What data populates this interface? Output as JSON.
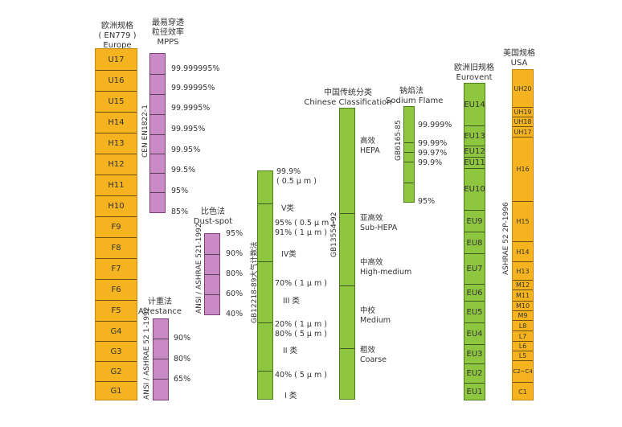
{
  "europe": {
    "header": [
      "欧洲规格",
      "( EN779 )",
      "Europe"
    ],
    "classes": [
      "U17",
      "U16",
      "U15",
      "H14",
      "H13",
      "H12",
      "H11",
      "H10",
      "F9",
      "F8",
      "F7",
      "F6",
      "F5",
      "G4",
      "G3",
      "G2",
      "G1"
    ]
  },
  "mpps": {
    "header": [
      "最易穿透",
      "粒径效率",
      "MPPS"
    ],
    "standard": "CEN EN1822-1",
    "values": [
      "99.999995%",
      "99.99995%",
      "99.9995%",
      "99.995%",
      "99.95%",
      "99.5%",
      "95%",
      "85%"
    ]
  },
  "dustspot": {
    "header": [
      "比色法",
      "Dust-spot"
    ],
    "standard": "ANSI / ASHRAE 521-1992",
    "values": [
      "95%",
      "90%",
      "80%",
      "60%",
      "40%"
    ]
  },
  "arrestance": {
    "header": [
      "计重法",
      "Arrestance"
    ],
    "standard": "ANSI / ASHRAE 52 1-1992",
    "values": [
      "90%",
      "80%",
      "65%"
    ]
  },
  "gb12218": {
    "standard": "GB12218-89大气计数法",
    "labels": [
      "99.9%",
      "( 0.5 μ m )",
      "V类",
      "95% ( 0.5 μ m )",
      "91% ( 1 μ m )",
      "IV类",
      "70% ( 1 μ m )",
      "III 类",
      "20% ( 1 μ m )",
      "80% ( 5 μ m )",
      "II 类",
      "40% ( 5 μ m )",
      "I 类"
    ]
  },
  "chinese": {
    "header": [
      "中国传统分类",
      "Chinese Classification"
    ],
    "standard": "GB13554-92",
    "labels": [
      "高效",
      "HEPA",
      "亚高效",
      "Sub-HEPA",
      "中高效",
      "High-medium",
      "中校",
      "Medium",
      "粗效",
      "Coarse"
    ]
  },
  "sodium": {
    "header": [
      "钠焰法",
      "Sodium Flame"
    ],
    "standard": "GB6165-85",
    "values": [
      "99.999%",
      "99.99%",
      "99.97%",
      "99.9%",
      "95%"
    ]
  },
  "eurovent": {
    "header": [
      "欧洲旧规格",
      "Eurovent"
    ],
    "classes": [
      "EU14",
      "EU13",
      "EU12",
      "EU11",
      "EU10",
      "EU9",
      "EU8",
      "EU7",
      "EU6",
      "EU5",
      "EU4",
      "EU3",
      "EU2",
      "EU1"
    ]
  },
  "usa": {
    "header": [
      "美国规格",
      "USA"
    ],
    "standard": "ASHRAE 52 2P-1996",
    "classes": [
      "UH20",
      "UH19",
      "UH18",
      "UH17",
      "H16",
      "H15",
      "H14",
      "H13",
      "M12",
      "M11",
      "M10",
      "M9",
      "L8",
      "L7",
      "L6",
      "L5",
      "C2~C4",
      "C1"
    ]
  },
  "colors": {
    "orange": "#f5b31f",
    "purple": "#c98ac5",
    "green": "#8ec63f"
  }
}
